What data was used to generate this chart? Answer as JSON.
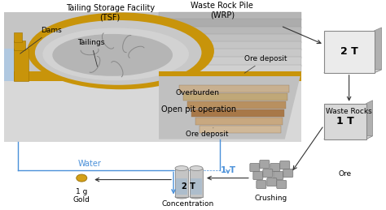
{
  "bg_color": "#ffffff",
  "labels": {
    "tsf": "Tailing Storage Facility\n(TSF)",
    "wrp": "Waste Rock Pile\n(WRP)",
    "dams": "Dams",
    "tailings": "Tailings",
    "overburden": "Overburden",
    "open_pit": "Open pit operation",
    "ore_deposit_top": "Ore deposit",
    "ore_deposit_bot": "Ore deposit",
    "water": "Water",
    "gold_label": "1 g\nGold",
    "concentration_label": "2 T",
    "concentration_text": "Concentration",
    "crushing_text": "Crushing",
    "waste_rocks_text": "Waste Rocks",
    "ore_text": "Ore",
    "one_t": "1 T"
  },
  "colors": {
    "gold_fill": "#d4a017",
    "arrow_blue": "#4a90d9",
    "gold_terrain": "#c8940a",
    "light_gray": "#d8d8d8",
    "mid_gray": "#b8b8b8",
    "dark_gray": "#909090",
    "ore_brown": "#c0a080",
    "ore_dark": "#a87848",
    "box_fill": "#e8e8e8",
    "box_side": "#b0b0b0",
    "box_top": "#d0d0d0",
    "water_blue": "#87ceeb",
    "rock_fill": "#a8a8a8",
    "cyl_fill": "#c8c8c8",
    "cyl_liq": "#b0bec5"
  }
}
